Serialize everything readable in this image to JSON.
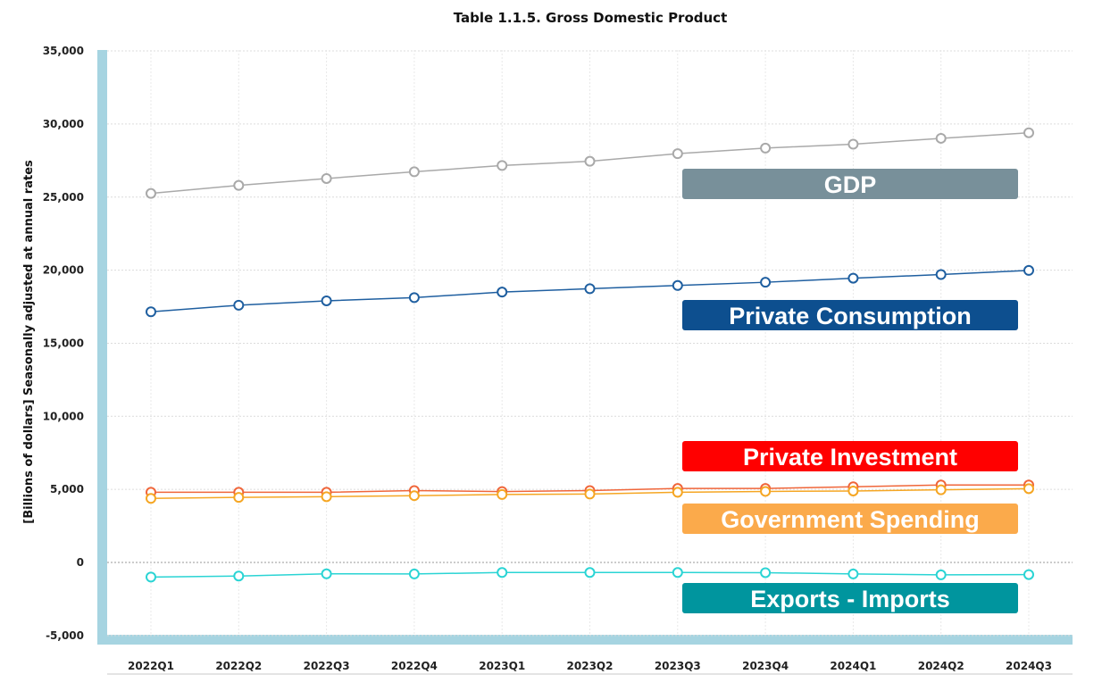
{
  "chart_data": {
    "type": "line",
    "title": "Table 1.1.5. Gross Domestic Product",
    "ylabel": "[Billions of dollars] Seasonally adjusted at annual rates",
    "xlabel": "",
    "ylim": [
      -5000,
      35000
    ],
    "yticks": [
      -5000,
      0,
      5000,
      10000,
      15000,
      20000,
      25000,
      30000,
      35000
    ],
    "ytick_labels": [
      "-5,000",
      "0",
      "5,000",
      "10,000",
      "15,000",
      "20,000",
      "25,000",
      "30,000",
      "35,000"
    ],
    "categories": [
      "2022Q1",
      "2022Q2",
      "2022Q3",
      "2022Q4",
      "2023Q1",
      "2023Q2",
      "2023Q3",
      "2023Q4",
      "2024Q1",
      "2024Q2",
      "2024Q3"
    ],
    "grid": true,
    "series": [
      {
        "name": "GDP",
        "color": "#a9a9a9",
        "badge_color": "#78909a",
        "values": [
          25250,
          25800,
          26270,
          26730,
          27160,
          27450,
          27970,
          28350,
          28620,
          29020,
          29400
        ]
      },
      {
        "name": "Private Consumption",
        "color": "#1f5fa0",
        "badge_color": "#0d4f8f",
        "values": [
          17150,
          17600,
          17900,
          18120,
          18500,
          18730,
          18950,
          19170,
          19450,
          19700,
          19980
        ]
      },
      {
        "name": "Private Investment",
        "color": "#f0663a",
        "badge_color": "#ff0000",
        "values": [
          4800,
          4800,
          4800,
          4920,
          4850,
          4920,
          5060,
          5060,
          5180,
          5300,
          5300
        ]
      },
      {
        "name": "Government Spending",
        "color": "#f5a623",
        "badge_color": "#fbaa4b",
        "values": [
          4380,
          4450,
          4500,
          4570,
          4650,
          4680,
          4800,
          4860,
          4890,
          4970,
          5050
        ]
      },
      {
        "name": "Exports - Imports",
        "color": "#2ad4d4",
        "badge_color": "#00959e",
        "values": [
          -1000,
          -930,
          -780,
          -790,
          -690,
          -690,
          -690,
          -700,
          -790,
          -850,
          -830
        ]
      }
    ]
  }
}
